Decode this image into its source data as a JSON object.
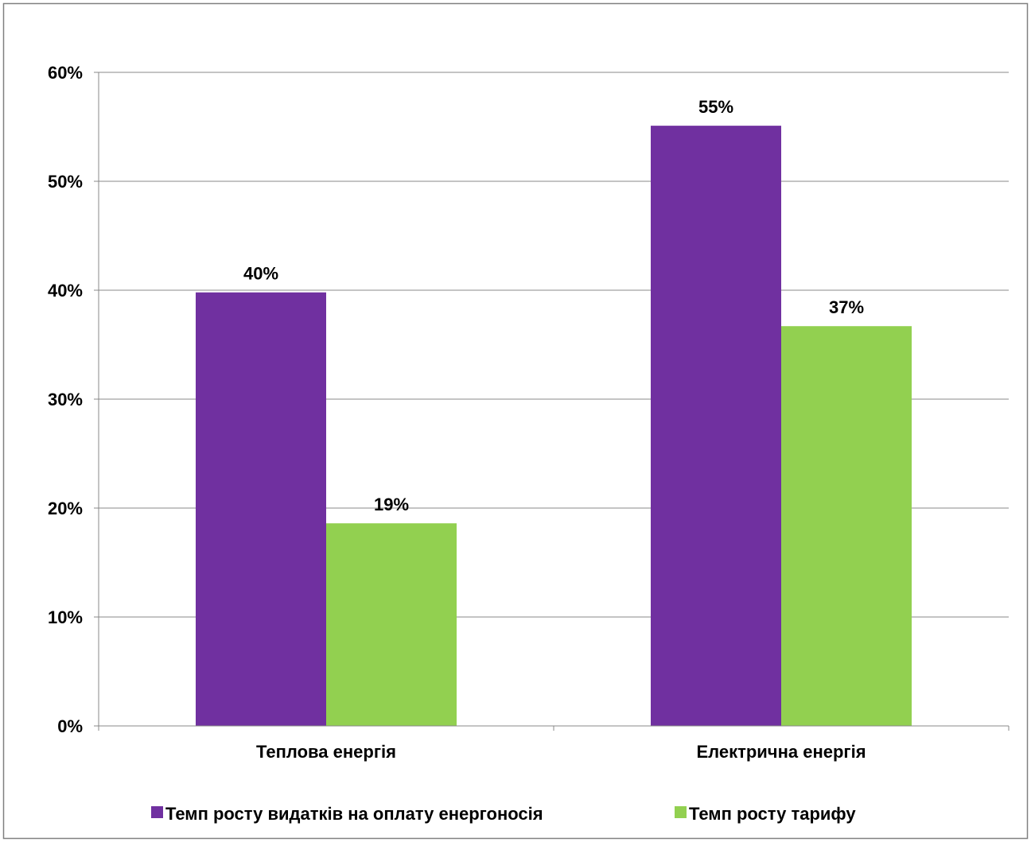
{
  "chart_data": {
    "type": "bar",
    "categories": [
      "Теплова енергія",
      "Електрична енергія"
    ],
    "series": [
      {
        "name": "Темп росту видатків на оплату енергоносія",
        "values": [
          0.398,
          0.551
        ],
        "labels": [
          "40%",
          "55%"
        ],
        "color": "#7030A0"
      },
      {
        "name": "Темп росту тарифу",
        "values": [
          0.186,
          0.367
        ],
        "labels": [
          "19%",
          "37%"
        ],
        "color": "#92D050"
      }
    ],
    "ylim": [
      0,
      0.6
    ],
    "yticks": [
      0,
      0.1,
      0.2,
      0.3,
      0.4,
      0.5,
      0.6
    ],
    "ytick_labels": [
      "0%",
      "10%",
      "20%",
      "30%",
      "40%",
      "50%",
      "60%"
    ],
    "grid": true,
    "legend": "bottom",
    "title": "",
    "xlabel": "",
    "ylabel": ""
  }
}
